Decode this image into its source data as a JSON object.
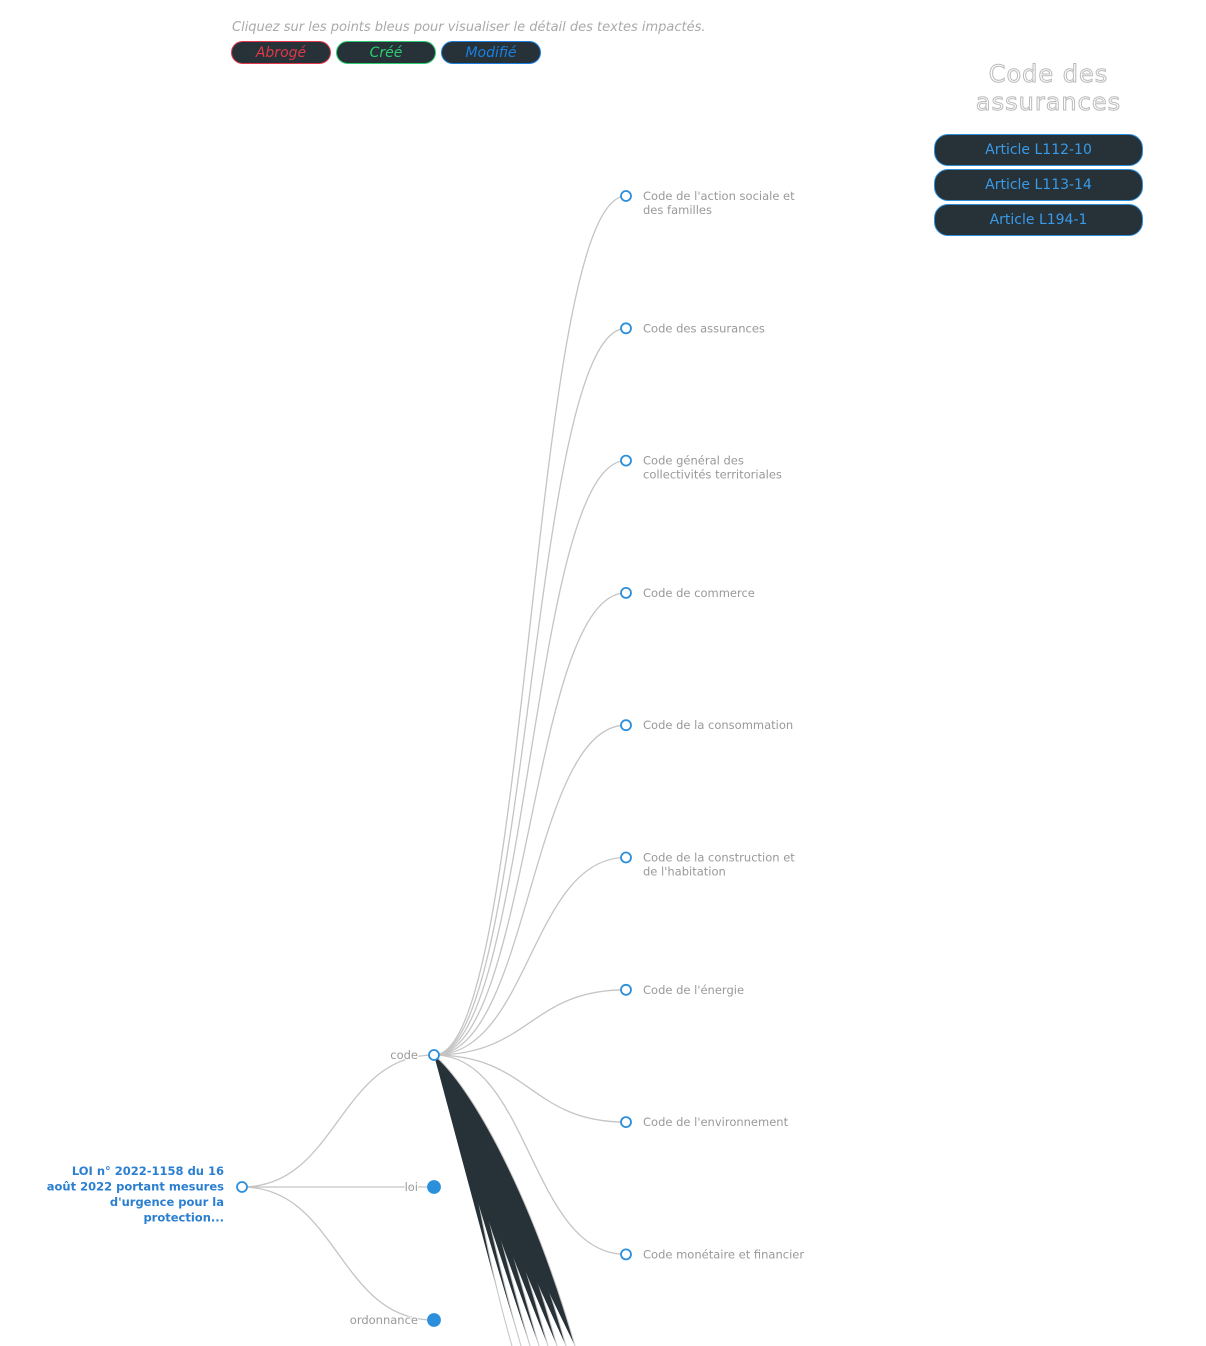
{
  "hint": "Cliquez sur les points bleus pour visualiser le détail des textes impactés.",
  "legend": [
    {
      "label": "Abrogé",
      "color": "#e0384a"
    },
    {
      "label": "Créé",
      "color": "#2ecc71"
    },
    {
      "label": "Modifié",
      "color": "#1a7fe0"
    }
  ],
  "panel": {
    "title": "Code des assurances",
    "articles": [
      "Article L112-10",
      "Article L113-14",
      "Article L194-1"
    ]
  },
  "tree": {
    "root": [
      "LOI n° 2022-1158 du 16",
      "août 2022 portant mesures",
      "d'urgence pour la",
      "protection..."
    ],
    "types": [
      {
        "label": "code",
        "filled": false
      },
      {
        "label": "loi",
        "filled": true
      },
      {
        "label": "ordonnance",
        "filled": true
      }
    ],
    "codes": [
      [
        "Code de l'action sociale et",
        "des familles"
      ],
      [
        "Code des assurances"
      ],
      [
        "Code général des",
        "collectivités territoriales"
      ],
      [
        "Code de commerce"
      ],
      [
        "Code de la consommation"
      ],
      [
        "Code de la construction et",
        "de l'habitation"
      ],
      [
        "Code de l'énergie"
      ],
      [
        "Code de l'environnement"
      ],
      [
        "Code monétaire et financier"
      ]
    ]
  },
  "colors": {
    "node": "#2b8fdc",
    "link": "#c4c4c4",
    "dark": "#263238"
  }
}
